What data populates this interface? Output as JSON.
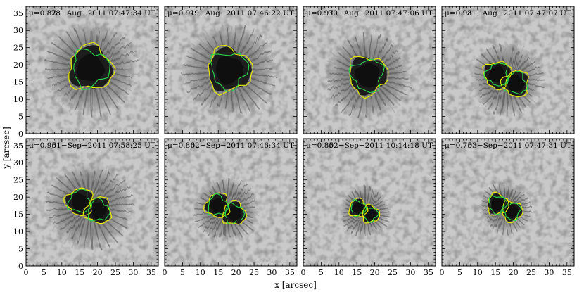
{
  "figure": {
    "xlabel": "x  [arcsec]",
    "ylabel": "y  [arcsec]",
    "x_ticks": [
      "0",
      "5",
      "10",
      "15",
      "20",
      "25",
      "30",
      "35"
    ],
    "y_ticks": [
      "0",
      "5",
      "10",
      "15",
      "20",
      "25",
      "30",
      "35"
    ],
    "contour_colors": {
      "umbra_outer": "#e8e800",
      "umbra_inner": "#27d84a"
    },
    "image_colors": {
      "quiet_sun": "#c9c9c9",
      "penumbra": "#6f6f6f",
      "umbra": "#0f0f0f"
    }
  },
  "chart_data": {
    "type": "heatmap",
    "xlabel": "x  [arcsec]",
    "ylabel": "y  [arcsec]",
    "xlim": [
      0,
      37
    ],
    "ylim": [
      0,
      37
    ],
    "panels": [
      {
        "mu": "μ=0.87",
        "date": "28−Aug−2011 07:47:34 UT",
        "center": [
          18,
          19
        ],
        "umbra_radius": 5.5,
        "penumbra_radius": 13,
        "lobes": 1
      },
      {
        "mu": "μ=0.91",
        "date": "29−Aug−2011 07:46:22 UT",
        "center": [
          18,
          18.5
        ],
        "umbra_radius": 5.5,
        "penumbra_radius": 13,
        "lobes": 1
      },
      {
        "mu": "μ=0.97",
        "date": "30−Aug−2011 07:47:06 UT",
        "center": [
          18,
          17
        ],
        "umbra_radius": 4.8,
        "penumbra_radius": 12,
        "lobes": 1
      },
      {
        "mu": "μ=0.98",
        "date": "31−Aug−2011 07:47:07 UT",
        "center": [
          18,
          16
        ],
        "umbra_radius": 4.5,
        "penumbra_radius": 10,
        "lobes": 2
      },
      {
        "mu": "μ=0.95",
        "date": "01−Sep−2011 07:58:25 UT",
        "center": [
          17.5,
          17.5
        ],
        "umbra_radius": 4.5,
        "penumbra_radius": 12,
        "lobes": 2
      },
      {
        "mu": "μ=0.86",
        "date": "02−Sep−2011 07:46:34 UT",
        "center": [
          17,
          16.5
        ],
        "umbra_radius": 4,
        "penumbra_radius": 9,
        "lobes": 2
      },
      {
        "mu": "μ=0.85",
        "date": "02−Sep−2011 10:14:18 UT",
        "center": [
          17,
          16
        ],
        "umbra_radius": 3,
        "penumbra_radius": 7,
        "lobes": 2
      },
      {
        "mu": "μ=0.75",
        "date": "03−Sep−2011 07:47:31 UT",
        "center": [
          17.5,
          17
        ],
        "umbra_radius": 3.5,
        "penumbra_radius": 7,
        "lobes": 2
      }
    ]
  }
}
